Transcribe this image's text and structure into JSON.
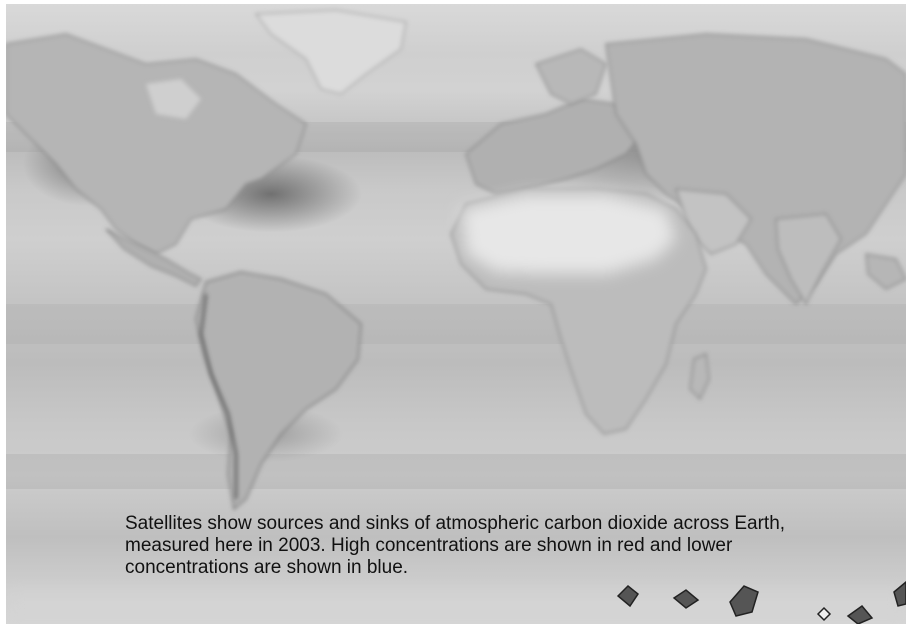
{
  "caption": "Satellites show sources and sinks of atmospheric carbon dioxide across Earth, measured here in 2003. High concentrations are shown in red and lower concentrations are shown in blue.",
  "colors": {
    "ocean": "#c8c8c8",
    "land": "#b6b6b6",
    "sahara": "#e6e6e6",
    "greenland": "#dcdcdc",
    "coast": "#6a6a6a",
    "dark_patch": "#3c3c3c"
  }
}
